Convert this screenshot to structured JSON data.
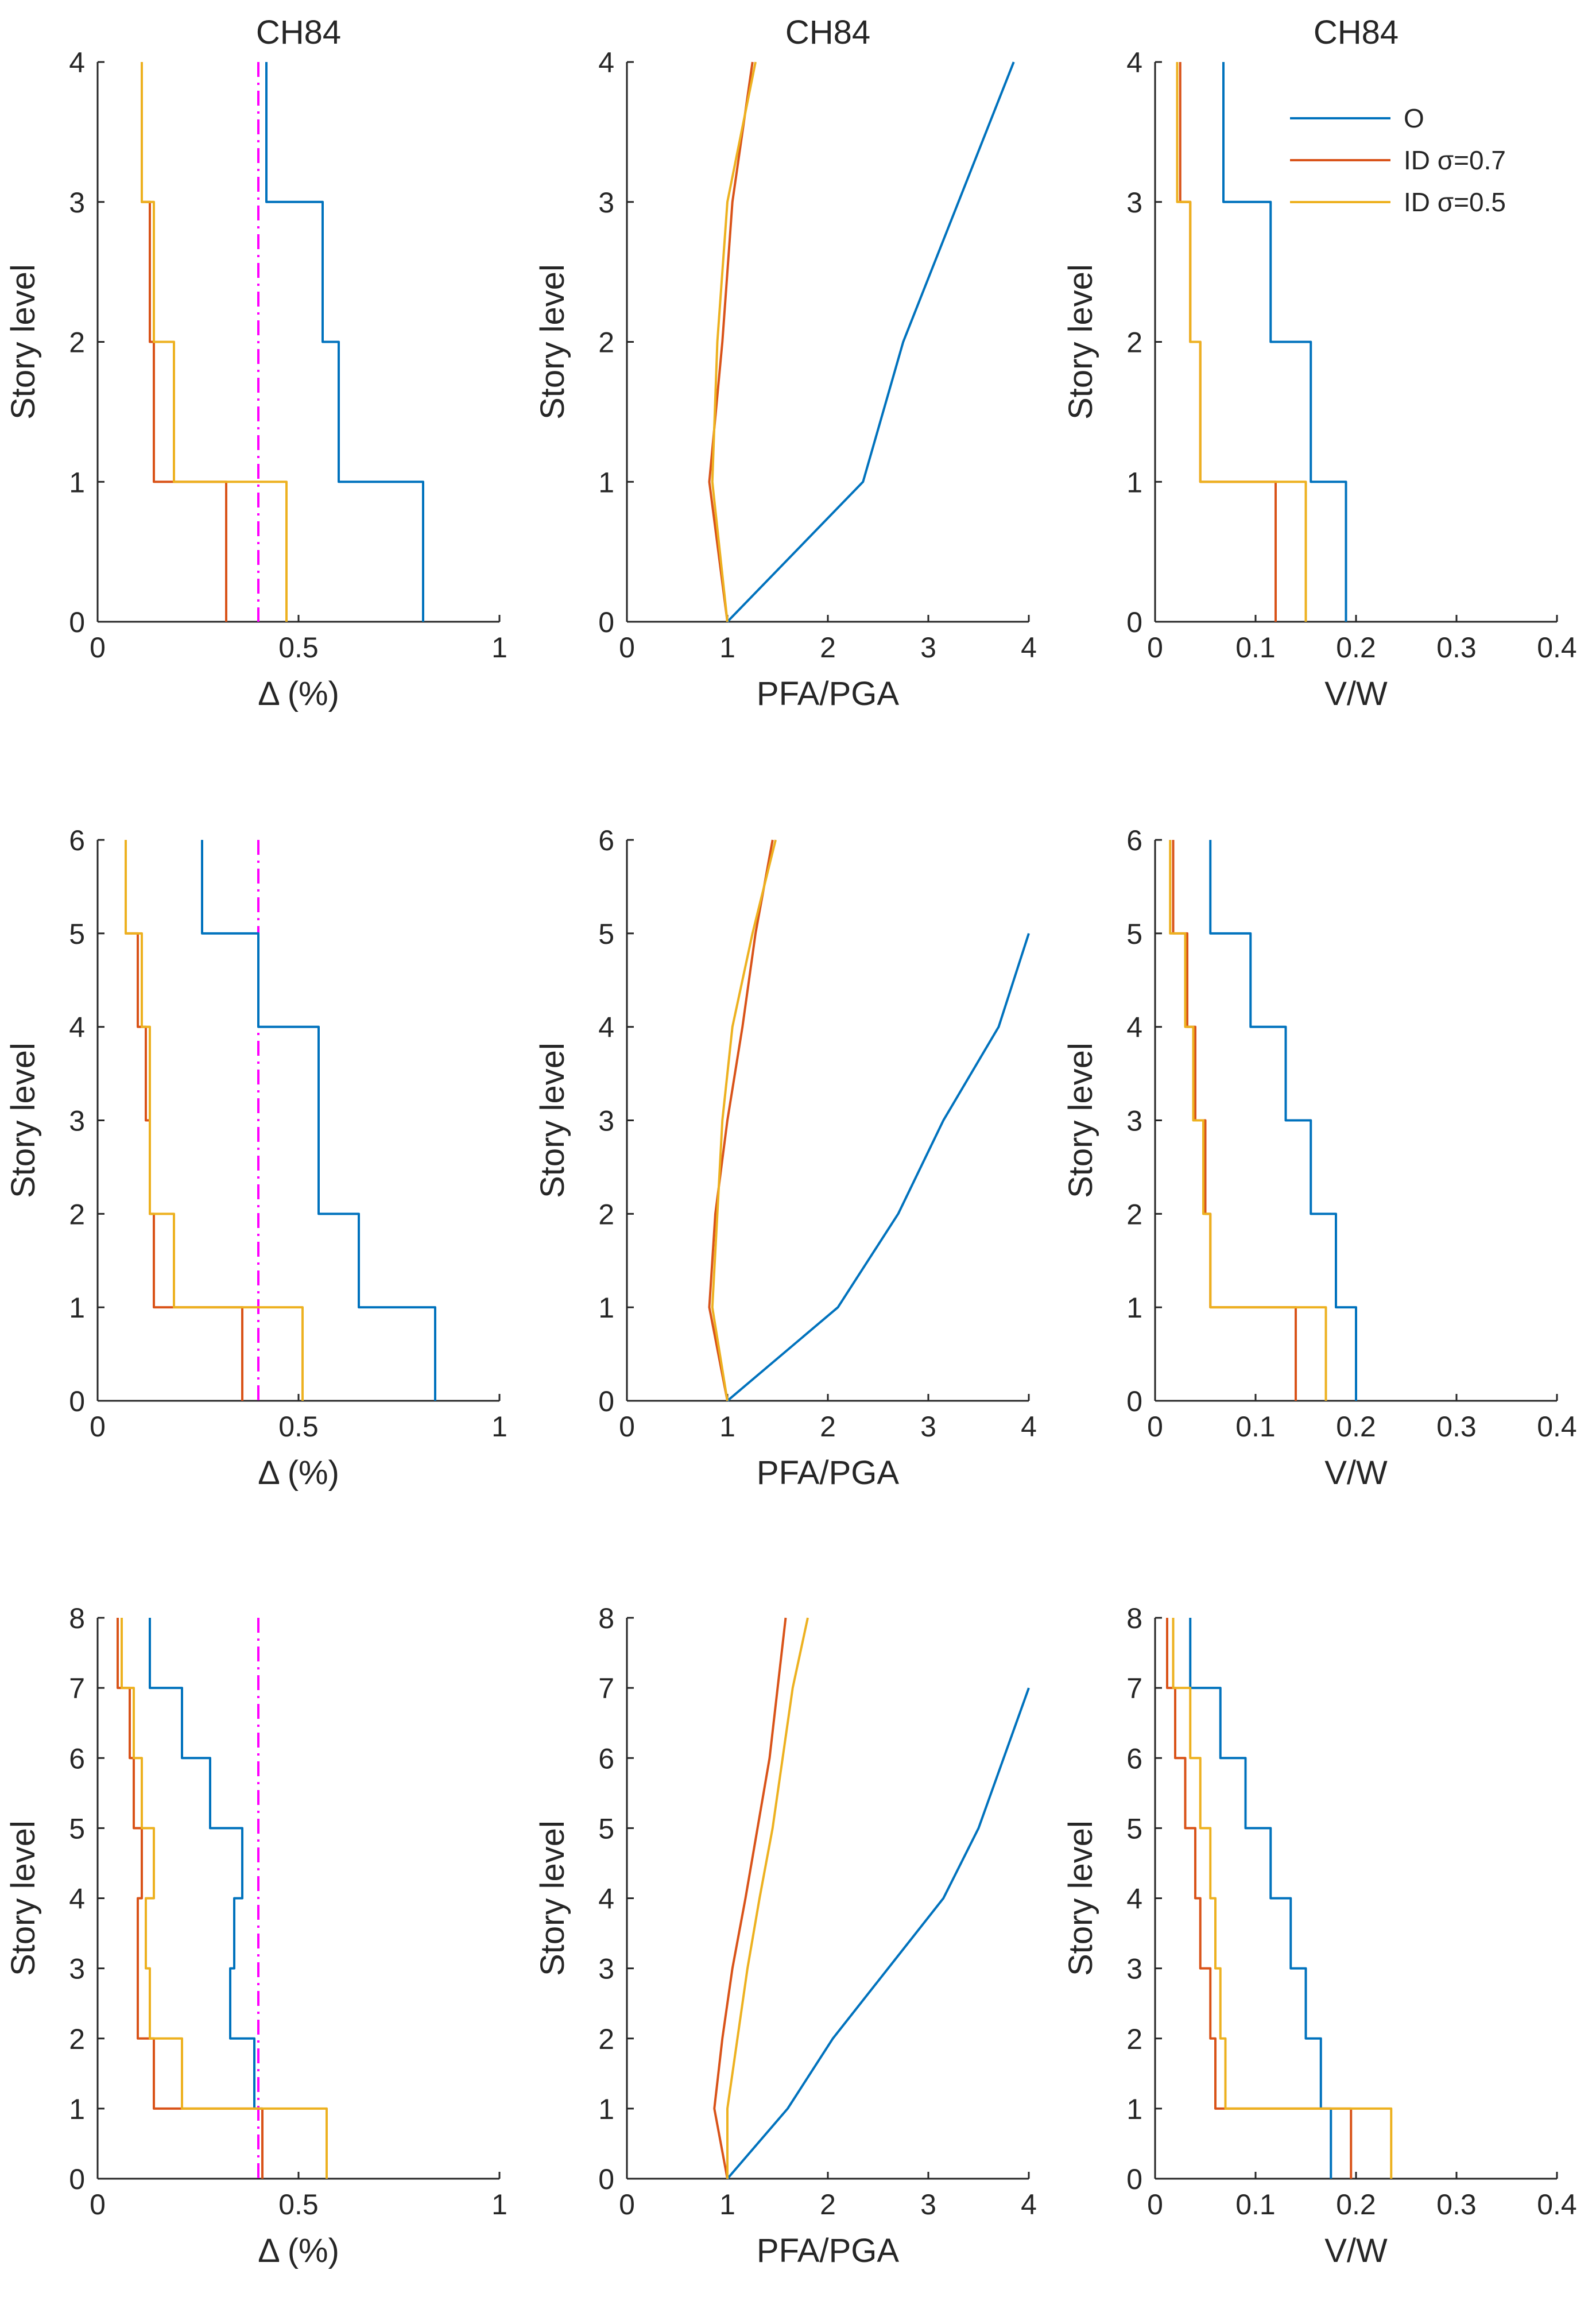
{
  "colors": {
    "O": "#0072BD",
    "ID07": "#D95319",
    "ID05": "#EDB120",
    "limit": "#FF00FF",
    "axis": "#262626"
  },
  "legend": {
    "entries": [
      {
        "key": "O",
        "label": "O"
      },
      {
        "key": "ID07",
        "label": "ID σ=0.7"
      },
      {
        "key": "ID05",
        "label": "ID σ=0.5"
      }
    ]
  },
  "chart_data": [
    {
      "id": "r1c1",
      "type": "line",
      "step": true,
      "title": "CH84",
      "xlabel": "Δ (%)",
      "ylabel": "Story level",
      "xlim": [
        0,
        1
      ],
      "ylim": [
        0,
        4
      ],
      "xticks": [
        0,
        0.5,
        1
      ],
      "xticklabels": [
        "0",
        "0.5",
        "1"
      ],
      "yticks": [
        0,
        1,
        2,
        3,
        4
      ],
      "limit_line": 0.4,
      "series": [
        {
          "name": "O",
          "key": "O",
          "values": [
            0.81,
            0.6,
            0.56,
            0.42
          ]
        },
        {
          "name": "ID σ=0.7",
          "key": "ID07",
          "values": [
            0.32,
            0.14,
            0.13,
            0.11
          ]
        },
        {
          "name": "ID σ=0.5",
          "key": "ID05",
          "values": [
            0.47,
            0.19,
            0.14,
            0.11
          ]
        }
      ]
    },
    {
      "id": "r1c2",
      "type": "line",
      "step": false,
      "title": "CH84",
      "xlabel": "PFA/PGA",
      "ylabel": "Story level",
      "xlim": [
        0,
        4
      ],
      "ylim": [
        0,
        4
      ],
      "xticks": [
        0,
        1,
        2,
        3,
        4
      ],
      "xticklabels": [
        "0",
        "1",
        "2",
        "3",
        "4"
      ],
      "yticks": [
        0,
        1,
        2,
        3,
        4
      ],
      "series": [
        {
          "name": "O",
          "key": "O",
          "values": [
            1.0,
            2.35,
            2.75,
            3.3,
            3.85
          ]
        },
        {
          "name": "ID σ=0.7",
          "key": "ID07",
          "values": [
            1.0,
            0.82,
            0.95,
            1.05,
            1.25
          ]
        },
        {
          "name": "ID σ=0.5",
          "key": "ID05",
          "values": [
            1.0,
            0.85,
            0.9,
            1.0,
            1.28
          ]
        }
      ]
    },
    {
      "id": "r1c3",
      "type": "line",
      "step": true,
      "title": "CH84",
      "xlabel": "V/W",
      "ylabel": "Story level",
      "xlim": [
        0,
        0.4
      ],
      "ylim": [
        0,
        4
      ],
      "xticks": [
        0,
        0.1,
        0.2,
        0.3,
        0.4
      ],
      "xticklabels": [
        "0",
        "0.1",
        "0.2",
        "0.3",
        "0.4"
      ],
      "yticks": [
        0,
        1,
        2,
        3,
        4
      ],
      "legend": true,
      "series": [
        {
          "name": "O",
          "key": "O",
          "values": [
            0.19,
            0.155,
            0.115,
            0.068
          ]
        },
        {
          "name": "ID σ=0.7",
          "key": "ID07",
          "values": [
            0.12,
            0.045,
            0.035,
            0.025
          ]
        },
        {
          "name": "ID σ=0.5",
          "key": "ID05",
          "values": [
            0.15,
            0.045,
            0.035,
            0.022
          ]
        }
      ]
    },
    {
      "id": "r2c1",
      "type": "line",
      "step": true,
      "title": "",
      "xlabel": "Δ (%)",
      "ylabel": "Story level",
      "xlim": [
        0,
        1
      ],
      "ylim": [
        0,
        6
      ],
      "xticks": [
        0,
        0.5,
        1
      ],
      "xticklabels": [
        "0",
        "0.5",
        "1"
      ],
      "yticks": [
        0,
        1,
        2,
        3,
        4,
        5,
        6
      ],
      "limit_line": 0.4,
      "series": [
        {
          "name": "O",
          "key": "O",
          "values": [
            0.84,
            0.65,
            0.55,
            0.55,
            0.4,
            0.26
          ]
        },
        {
          "name": "ID σ=0.7",
          "key": "ID07",
          "values": [
            0.36,
            0.14,
            0.13,
            0.12,
            0.1,
            0.07
          ]
        },
        {
          "name": "ID σ=0.5",
          "key": "ID05",
          "values": [
            0.51,
            0.19,
            0.13,
            0.13,
            0.11,
            0.07
          ]
        }
      ]
    },
    {
      "id": "r2c2",
      "type": "line",
      "step": false,
      "title": "",
      "xlabel": "PFA/PGA",
      "ylabel": "Story level",
      "xlim": [
        0,
        4
      ],
      "ylim": [
        0,
        6
      ],
      "xticks": [
        0,
        1,
        2,
        3,
        4
      ],
      "xticklabels": [
        "0",
        "1",
        "2",
        "3",
        "4"
      ],
      "yticks": [
        0,
        1,
        2,
        3,
        4,
        5,
        6
      ],
      "series": [
        {
          "name": "O",
          "key": "O",
          "values": [
            1.0,
            2.1,
            2.7,
            3.15,
            3.7,
            4.0
          ]
        },
        {
          "name": "ID σ=0.7",
          "key": "ID07",
          "values": [
            1.0,
            0.82,
            0.88,
            1.0,
            1.15,
            1.28,
            1.45
          ]
        },
        {
          "name": "ID σ=0.5",
          "key": "ID05",
          "values": [
            1.0,
            0.85,
            0.9,
            0.95,
            1.05,
            1.25,
            1.48
          ]
        }
      ]
    },
    {
      "id": "r2c3",
      "type": "line",
      "step": true,
      "title": "",
      "xlabel": "V/W",
      "ylabel": "Story level",
      "xlim": [
        0,
        0.4
      ],
      "ylim": [
        0,
        6
      ],
      "xticks": [
        0,
        0.1,
        0.2,
        0.3,
        0.4
      ],
      "xticklabels": [
        "0",
        "0.1",
        "0.2",
        "0.3",
        "0.4"
      ],
      "yticks": [
        0,
        1,
        2,
        3,
        4,
        5,
        6
      ],
      "series": [
        {
          "name": "O",
          "key": "O",
          "values": [
            0.2,
            0.18,
            0.155,
            0.13,
            0.095,
            0.055
          ]
        },
        {
          "name": "ID σ=0.7",
          "key": "ID07",
          "values": [
            0.14,
            0.055,
            0.05,
            0.04,
            0.032,
            0.018
          ]
        },
        {
          "name": "ID σ=0.5",
          "key": "ID05",
          "values": [
            0.17,
            0.055,
            0.048,
            0.038,
            0.03,
            0.015
          ]
        }
      ]
    },
    {
      "id": "r3c1",
      "type": "line",
      "step": true,
      "title": "",
      "xlabel": "Δ (%)",
      "ylabel": "Story level",
      "xlim": [
        0,
        1
      ],
      "ylim": [
        0,
        8
      ],
      "xticks": [
        0,
        0.5,
        1
      ],
      "xticklabels": [
        "0",
        "0.5",
        "1"
      ],
      "yticks": [
        0,
        1,
        2,
        3,
        4,
        5,
        6,
        7,
        8
      ],
      "limit_line": 0.4,
      "series": [
        {
          "name": "O",
          "key": "O",
          "values": [
            0.41,
            0.39,
            0.33,
            0.34,
            0.36,
            0.28,
            0.21,
            0.13
          ]
        },
        {
          "name": "ID σ=0.7",
          "key": "ID07",
          "values": [
            0.41,
            0.14,
            0.1,
            0.1,
            0.11,
            0.09,
            0.08,
            0.05
          ]
        },
        {
          "name": "ID σ=0.5",
          "key": "ID05",
          "values": [
            0.57,
            0.21,
            0.13,
            0.12,
            0.14,
            0.11,
            0.09,
            0.06
          ]
        }
      ]
    },
    {
      "id": "r3c2",
      "type": "line",
      "step": false,
      "title": "",
      "xlabel": "PFA/PGA",
      "ylabel": "Story level",
      "xlim": [
        0,
        4
      ],
      "ylim": [
        0,
        8
      ],
      "xticks": [
        0,
        1,
        2,
        3,
        4
      ],
      "xticklabels": [
        "0",
        "1",
        "2",
        "3",
        "4"
      ],
      "yticks": [
        0,
        1,
        2,
        3,
        4,
        5,
        6,
        7,
        8
      ],
      "series": [
        {
          "name": "O",
          "key": "O",
          "values": [
            1.0,
            1.6,
            2.05,
            2.6,
            3.15,
            3.5,
            3.75,
            4.0
          ]
        },
        {
          "name": "ID σ=0.7",
          "key": "ID07",
          "values": [
            1.0,
            0.87,
            0.95,
            1.05,
            1.18,
            1.3,
            1.42,
            1.5,
            1.58
          ]
        },
        {
          "name": "ID σ=0.5",
          "key": "ID05",
          "values": [
            1.0,
            1.0,
            1.1,
            1.2,
            1.32,
            1.45,
            1.55,
            1.65,
            1.8
          ]
        }
      ]
    },
    {
      "id": "r3c3",
      "type": "line",
      "step": true,
      "title": "",
      "xlabel": "V/W",
      "ylabel": "Story level",
      "xlim": [
        0,
        0.4
      ],
      "ylim": [
        0,
        8
      ],
      "xticks": [
        0,
        0.1,
        0.2,
        0.3,
        0.4
      ],
      "xticklabels": [
        "0",
        "0.1",
        "0.2",
        "0.3",
        "0.4"
      ],
      "yticks": [
        0,
        1,
        2,
        3,
        4,
        5,
        6,
        7,
        8
      ],
      "series": [
        {
          "name": "O",
          "key": "O",
          "values": [
            0.175,
            0.165,
            0.15,
            0.135,
            0.115,
            0.09,
            0.065,
            0.035
          ]
        },
        {
          "name": "ID σ=0.7",
          "key": "ID07",
          "values": [
            0.195,
            0.06,
            0.055,
            0.045,
            0.04,
            0.03,
            0.02,
            0.012
          ]
        },
        {
          "name": "ID σ=0.5",
          "key": "ID05",
          "values": [
            0.235,
            0.07,
            0.065,
            0.06,
            0.055,
            0.045,
            0.035,
            0.018
          ]
        }
      ]
    }
  ]
}
